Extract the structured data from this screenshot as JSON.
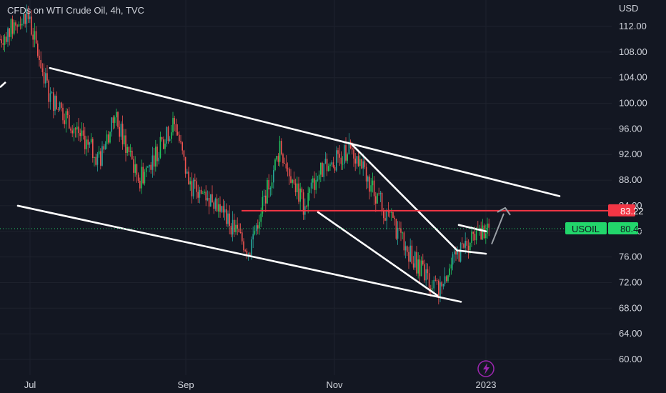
{
  "header": {
    "title": "CFDs on WTI Crude Oil, 4h, TVC",
    "currency": "USD"
  },
  "colors": {
    "background": "#131722",
    "grid": "#1e222d",
    "text": "#d1d4dc",
    "up": "#26a69a",
    "up_bright": "#22c55e",
    "down": "#ef5350",
    "trendline": "#ffffff",
    "level": "#f23645",
    "current": "#22d66b",
    "arrow": "#9aa0a6",
    "badge_icon": "#9c27b0"
  },
  "chart_data": {
    "type": "candlestick",
    "y_axis": {
      "min": 56,
      "max": 116,
      "ticks": [
        60,
        64,
        68,
        72,
        76,
        80,
        84,
        88,
        92,
        96,
        100,
        104,
        108,
        112
      ],
      "position": "right",
      "unit": "USD"
    },
    "x_axis": {
      "labels": [
        "Jul",
        "Sep",
        "Nov",
        "2023"
      ]
    },
    "series": [
      {
        "kind": "price",
        "shape": "downtrend inside descending channel",
        "path": [
          {
            "t": "Jun",
            "v": 110
          },
          {
            "t": "late Jun",
            "v": 114
          },
          {
            "t": "early Jul",
            "v": 101
          },
          {
            "t": "mid Jul",
            "v": 97
          },
          {
            "t": "late Jul",
            "v": 91
          },
          {
            "t": "early Aug",
            "v": 98
          },
          {
            "t": "mid Aug",
            "v": 88
          },
          {
            "t": "late Aug",
            "v": 97
          },
          {
            "t": "early Sep",
            "v": 87
          },
          {
            "t": "mid Sep",
            "v": 85
          },
          {
            "t": "late Sep",
            "v": 77
          },
          {
            "t": "early Oct",
            "v": 93
          },
          {
            "t": "mid Oct",
            "v": 84
          },
          {
            "t": "late Oct",
            "v": 89
          },
          {
            "t": "early Nov",
            "v": 93
          },
          {
            "t": "mid Nov",
            "v": 85
          },
          {
            "t": "late Nov",
            "v": 78
          },
          {
            "t": "early Dec",
            "v": 73
          },
          {
            "t": "mid Dec",
            "v": 71
          },
          {
            "t": "late Dec",
            "v": 77
          },
          {
            "t": "early Jan",
            "v": 80.42
          }
        ]
      }
    ],
    "annotations": {
      "channel_upper": {
        "from": {
          "t": "early Jul",
          "v": 105.5
        },
        "to": {
          "t": "Feb",
          "v": 85.5
        }
      },
      "channel_lower": {
        "from": {
          "t": "Jun",
          "v": 84
        },
        "to": {
          "t": "late Dec",
          "v": 69
        }
      },
      "wedge_upper": {
        "from": {
          "t": "early Nov",
          "v": 93.5
        },
        "to": {
          "t": "late Dec",
          "v": 77
        }
      },
      "wedge_lower": {
        "from": {
          "t": "late Oct",
          "v": 83
        },
        "to": {
          "t": "mid Dec",
          "v": 70
        }
      },
      "flag_lines": [
        {
          "from": {
            "t": "late Dec",
            "v": 77
          },
          "to": {
            "t": "early Jan",
            "v": 76.5
          }
        },
        {
          "from": {
            "t": "late Dec",
            "v": 81
          },
          "to": {
            "t": "early Jan",
            "v": 80
          }
        }
      ],
      "resistance": {
        "value": 83.22,
        "label": "83.22"
      },
      "target_arrow": {
        "to": 83.22
      }
    },
    "current_price": {
      "symbol": "USOIL",
      "value": "80.42"
    }
  }
}
